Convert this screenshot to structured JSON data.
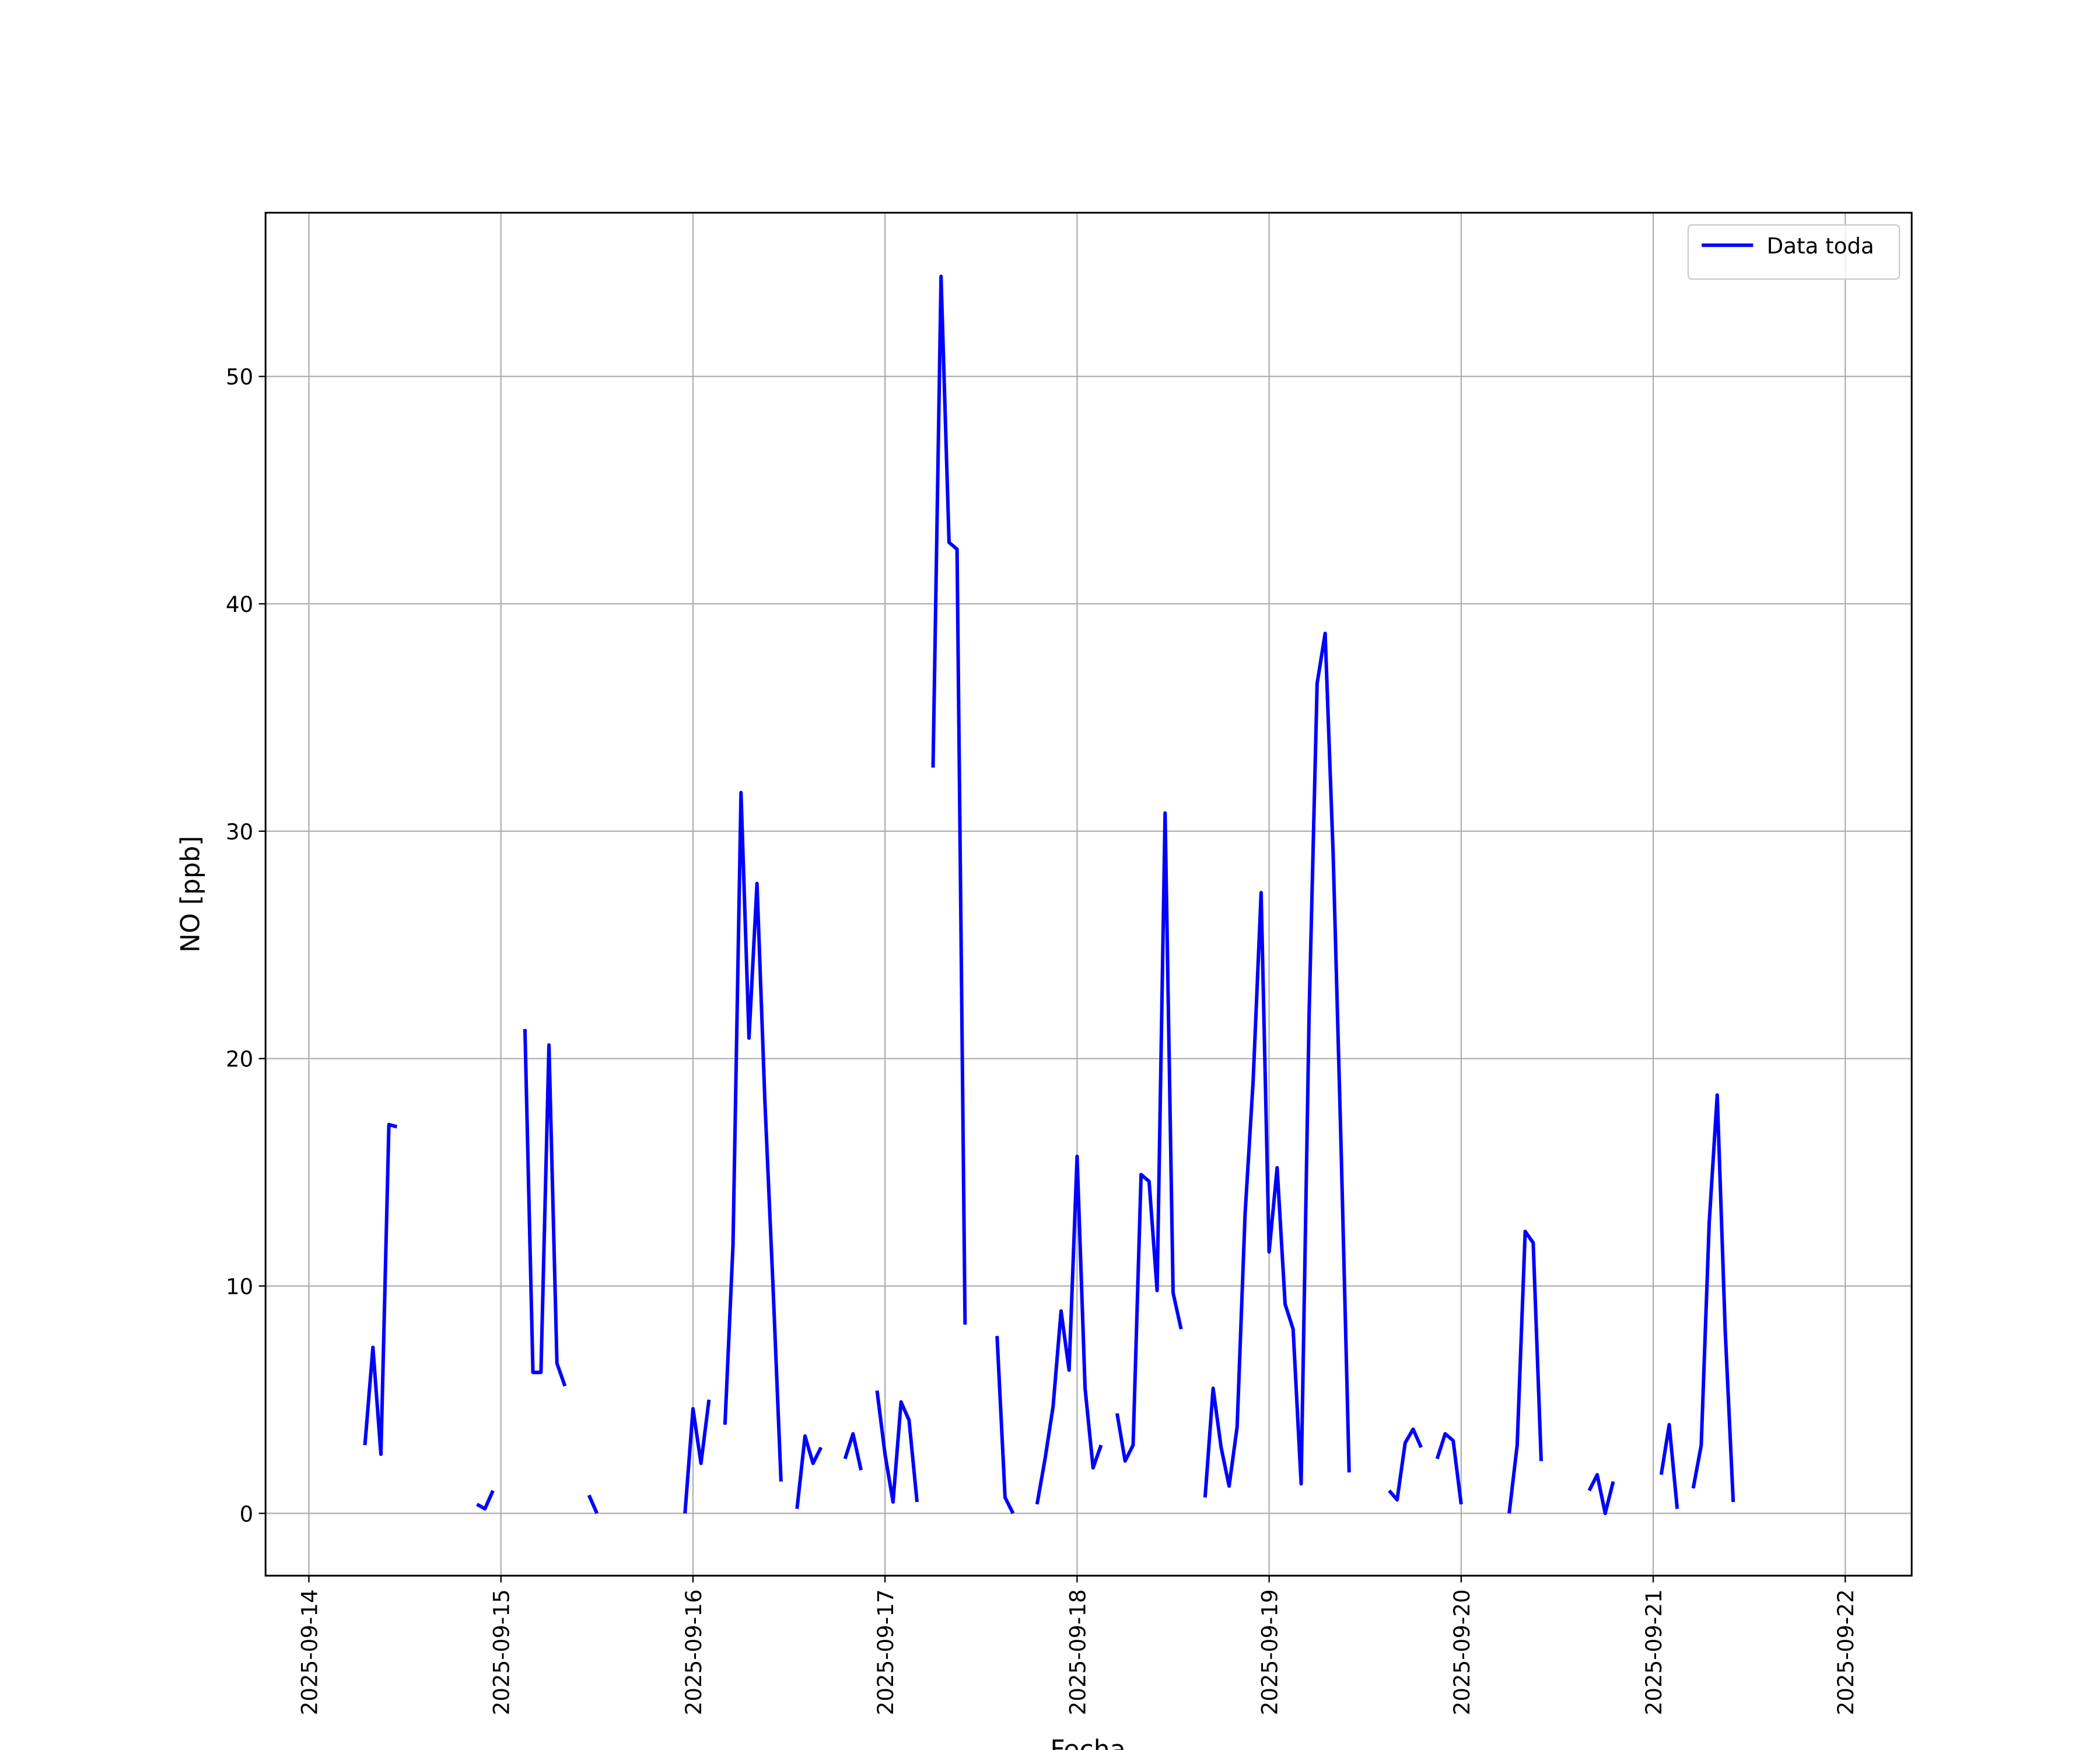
{
  "chart_data": {
    "type": "line",
    "xlabel": "Fecha",
    "ylabel": "NO [ppb]",
    "x": [
      "2025-09-14 07:00",
      "2025-09-14 08:00",
      "2025-09-14 09:00",
      "2025-09-14 10:00",
      "2025-09-14 11:00",
      "2025-09-14 12:00",
      "2025-09-14 21:00",
      "2025-09-14 22:00",
      "2025-09-14 23:00",
      "2025-09-15 00:00",
      "2025-09-15 03:00",
      "2025-09-15 04:00",
      "2025-09-15 05:00",
      "2025-09-15 06:00",
      "2025-09-15 07:00",
      "2025-09-15 08:00",
      "2025-09-15 09:00",
      "2025-09-15 11:00",
      "2025-09-15 12:00",
      "2025-09-15 13:00",
      "2025-09-15 23:00",
      "2025-09-16 00:00",
      "2025-09-16 01:00",
      "2025-09-16 02:00",
      "2025-09-16 03:00",
      "2025-09-16 04:00",
      "2025-09-16 05:00",
      "2025-09-16 06:00",
      "2025-09-16 07:00",
      "2025-09-16 08:00",
      "2025-09-16 09:00",
      "2025-09-16 10:00",
      "2025-09-16 11:00",
      "2025-09-16 12:00",
      "2025-09-16 13:00",
      "2025-09-16 14:00",
      "2025-09-16 15:00",
      "2025-09-16 16:00",
      "2025-09-16 17:00",
      "2025-09-16 19:00",
      "2025-09-16 20:00",
      "2025-09-16 21:00",
      "2025-09-16 22:00",
      "2025-09-16 23:00",
      "2025-09-17 00:00",
      "2025-09-17 01:00",
      "2025-09-17 02:00",
      "2025-09-17 03:00",
      "2025-09-17 04:00",
      "2025-09-17 05:00",
      "2025-09-17 06:00",
      "2025-09-17 07:00",
      "2025-09-17 08:00",
      "2025-09-17 09:00",
      "2025-09-17 10:00",
      "2025-09-17 11:00",
      "2025-09-17 14:00",
      "2025-09-17 15:00",
      "2025-09-17 16:00",
      "2025-09-17 17:00",
      "2025-09-17 19:00",
      "2025-09-17 20:00",
      "2025-09-17 21:00",
      "2025-09-17 22:00",
      "2025-09-17 23:00",
      "2025-09-18 00:00",
      "2025-09-18 01:00",
      "2025-09-18 02:00",
      "2025-09-18 03:00",
      "2025-09-18 04:00",
      "2025-09-18 05:00",
      "2025-09-18 06:00",
      "2025-09-18 07:00",
      "2025-09-18 08:00",
      "2025-09-18 09:00",
      "2025-09-18 10:00",
      "2025-09-18 11:00",
      "2025-09-18 12:00",
      "2025-09-18 13:00",
      "2025-09-18 14:00",
      "2025-09-18 16:00",
      "2025-09-18 17:00",
      "2025-09-18 18:00",
      "2025-09-18 19:00",
      "2025-09-18 20:00",
      "2025-09-18 21:00",
      "2025-09-18 22:00",
      "2025-09-18 23:00",
      "2025-09-19 00:00",
      "2025-09-19 01:00",
      "2025-09-19 02:00",
      "2025-09-19 03:00",
      "2025-09-19 04:00",
      "2025-09-19 05:00",
      "2025-09-19 06:00",
      "2025-09-19 07:00",
      "2025-09-19 08:00",
      "2025-09-19 09:00",
      "2025-09-19 10:00",
      "2025-09-19 11:00",
      "2025-09-19 15:00",
      "2025-09-19 16:00",
      "2025-09-19 17:00",
      "2025-09-19 18:00",
      "2025-09-19 19:00",
      "2025-09-19 20:00",
      "2025-09-19 21:00",
      "2025-09-19 22:00",
      "2025-09-19 23:00",
      "2025-09-20 00:00",
      "2025-09-20 01:00",
      "2025-09-20 06:00",
      "2025-09-20 07:00",
      "2025-09-20 08:00",
      "2025-09-20 09:00",
      "2025-09-20 10:00",
      "2025-09-20 11:00",
      "2025-09-20 16:00",
      "2025-09-20 17:00",
      "2025-09-20 18:00",
      "2025-09-20 19:00",
      "2025-09-20 20:00",
      "2025-09-21 01:00",
      "2025-09-21 02:00",
      "2025-09-21 03:00",
      "2025-09-21 04:00",
      "2025-09-21 05:00",
      "2025-09-21 06:00",
      "2025-09-21 07:00",
      "2025-09-21 08:00",
      "2025-09-21 09:00",
      "2025-09-21 10:00"
    ],
    "series": [
      {
        "name": "Data toda",
        "color": "#0000ff",
        "values": [
          3.0,
          7.3,
          2.6,
          17.1,
          17.0,
          null,
          0.4,
          0.2,
          1.0,
          null,
          21.3,
          6.2,
          6.2,
          20.6,
          6.6,
          5.6,
          null,
          0.8,
          0.0,
          null,
          0.0,
          4.6,
          2.2,
          5.0,
          null,
          3.9,
          11.8,
          31.7,
          20.9,
          27.7,
          18.0,
          10.0,
          1.4,
          null,
          0.2,
          3.4,
          2.2,
          2.9,
          null,
          2.4,
          3.5,
          1.9,
          null,
          5.4,
          2.6,
          0.5,
          4.9,
          4.1,
          0.5,
          null,
          32.8,
          54.4,
          42.7,
          42.4,
          8.3,
          null,
          7.8,
          0.7,
          0.0,
          null,
          0.4,
          2.4,
          4.7,
          8.9,
          6.3,
          15.7,
          5.5,
          2.0,
          3.0,
          null,
          4.4,
          2.3,
          3.0,
          14.9,
          14.6,
          9.8,
          30.8,
          9.7,
          8.1,
          null,
          0.7,
          5.5,
          2.9,
          1.2,
          3.8,
          13.2,
          19.0,
          27.3,
          11.5,
          15.2,
          9.2,
          8.1,
          1.3,
          22.0,
          36.5,
          38.7,
          29.0,
          16.0,
          1.8,
          null,
          1.0,
          0.6,
          3.1,
          3.7,
          2.9,
          null,
          2.4,
          3.5,
          3.2,
          0.4,
          null,
          0.0,
          3.0,
          12.4,
          11.9,
          2.3,
          null,
          1.0,
          1.7,
          0.0,
          1.4,
          null,
          1.7,
          3.9,
          0.2,
          null,
          1.1,
          3.0,
          12.8,
          18.4,
          8.0,
          0.5
        ]
      }
    ],
    "xlim": [
      "2025-09-13 18:35",
      "2025-09-22 08:18"
    ],
    "xticks": [
      "2025-09-14",
      "2025-09-15",
      "2025-09-16",
      "2025-09-17",
      "2025-09-18",
      "2025-09-19",
      "2025-09-20",
      "2025-09-21",
      "2025-09-22"
    ],
    "ylim": [
      -2.74,
      57.2
    ],
    "yticks": [
      0,
      10,
      20,
      30,
      40,
      50
    ],
    "grid": true,
    "legend": "upper right"
  }
}
